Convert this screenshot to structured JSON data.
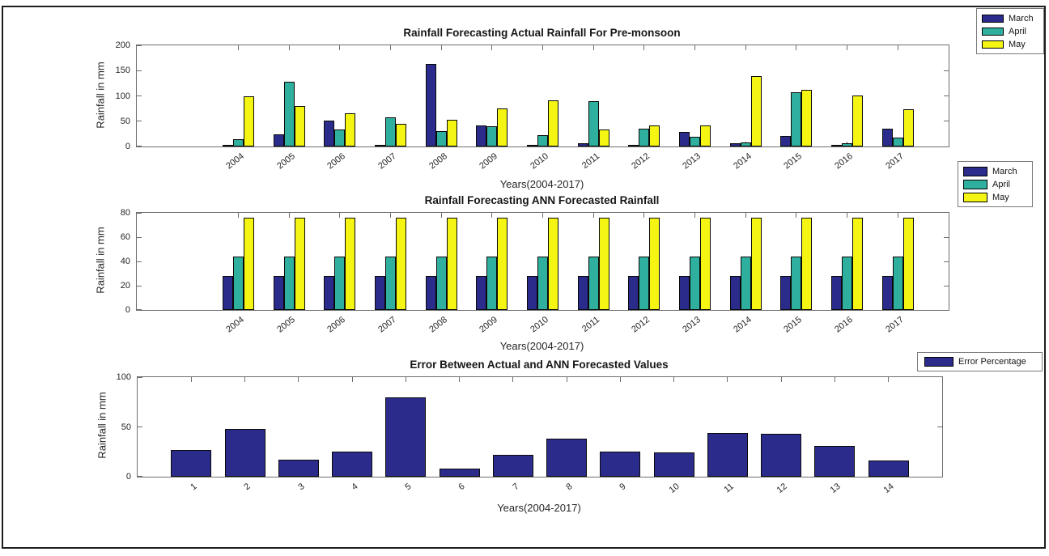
{
  "figure": {
    "background": "#ffffff",
    "border_color": "#1e1e1e",
    "axis_color": "#6e6e6e",
    "text_color": "#262626"
  },
  "palette": {
    "march": "#2B2B8C",
    "april": "#2FAF9D",
    "may": "#F4F513",
    "error": "#2B2B8C"
  },
  "chart_data": [
    {
      "type": "bar",
      "title": "Rainfall Forecasting Actual Rainfall For Pre-monsoon",
      "xlabel": "Years(2004-2017)",
      "ylabel": "Rainfall in mm",
      "categories": [
        "2004",
        "2005",
        "2006",
        "2007",
        "2008",
        "2009",
        "2010",
        "2011",
        "2012",
        "2013",
        "2014",
        "2015",
        "2016",
        "2017"
      ],
      "series": [
        {
          "name": "March",
          "color": "#2B2B8C",
          "values": [
            3,
            24,
            52,
            2,
            164,
            41,
            2,
            7,
            2,
            29,
            7,
            21,
            3,
            35
          ]
        },
        {
          "name": "April",
          "color": "#2FAF9D",
          "values": [
            15,
            128,
            33,
            57,
            31,
            40,
            22,
            90,
            35,
            20,
            8,
            108,
            7,
            17
          ]
        },
        {
          "name": "May",
          "color": "#F4F513",
          "values": [
            100,
            80,
            65,
            45,
            53,
            75,
            91,
            33,
            41,
            41,
            139,
            112,
            101,
            73
          ]
        }
      ],
      "ylim": [
        0,
        200
      ],
      "yticks": [
        0,
        50,
        100,
        150,
        200
      ],
      "grid": false,
      "legend_position": "outside-top-right"
    },
    {
      "type": "bar",
      "title": "Rainfall Forecasting ANN Forecasted Rainfall",
      "xlabel": "Years(2004-2017)",
      "ylabel": "Rainfall in mm",
      "categories": [
        "2004",
        "2005",
        "2006",
        "2007",
        "2008",
        "2009",
        "2010",
        "2011",
        "2012",
        "2013",
        "2014",
        "2015",
        "2016",
        "2017"
      ],
      "series": [
        {
          "name": "March",
          "color": "#2B2B8C",
          "values": [
            28,
            28,
            28,
            28,
            28,
            28,
            28,
            28,
            28,
            28,
            28,
            28,
            28,
            28
          ]
        },
        {
          "name": "April",
          "color": "#2FAF9D",
          "values": [
            44,
            44,
            44,
            44,
            44,
            44,
            44,
            44,
            44,
            44,
            44,
            44,
            44,
            44
          ]
        },
        {
          "name": "May",
          "color": "#F4F513",
          "values": [
            76,
            76,
            76,
            76,
            76,
            76,
            76,
            76,
            76,
            76,
            76,
            76,
            76,
            76
          ]
        }
      ],
      "ylim": [
        0,
        80
      ],
      "yticks": [
        0,
        20,
        40,
        60,
        80
      ],
      "grid": false,
      "legend_position": "outside-top-right"
    },
    {
      "type": "bar",
      "title": "Error Between Actual and ANN Forecasted Values",
      "xlabel": "Years(2004-2017)",
      "ylabel": "Rainfall in mm",
      "categories": [
        "1",
        "2",
        "3",
        "4",
        "5",
        "6",
        "7",
        "8",
        "9",
        "10",
        "11",
        "12",
        "13",
        "14"
      ],
      "series": [
        {
          "name": "Error Percentage",
          "color": "#2B2B8C",
          "values": [
            27,
            48,
            17,
            25,
            80,
            8,
            22,
            38,
            25,
            24,
            44,
            43,
            31,
            16
          ]
        }
      ],
      "ylim": [
        0,
        100
      ],
      "yticks": [
        0,
        50,
        100
      ],
      "grid": false,
      "legend_position": "outside-top-right"
    }
  ]
}
